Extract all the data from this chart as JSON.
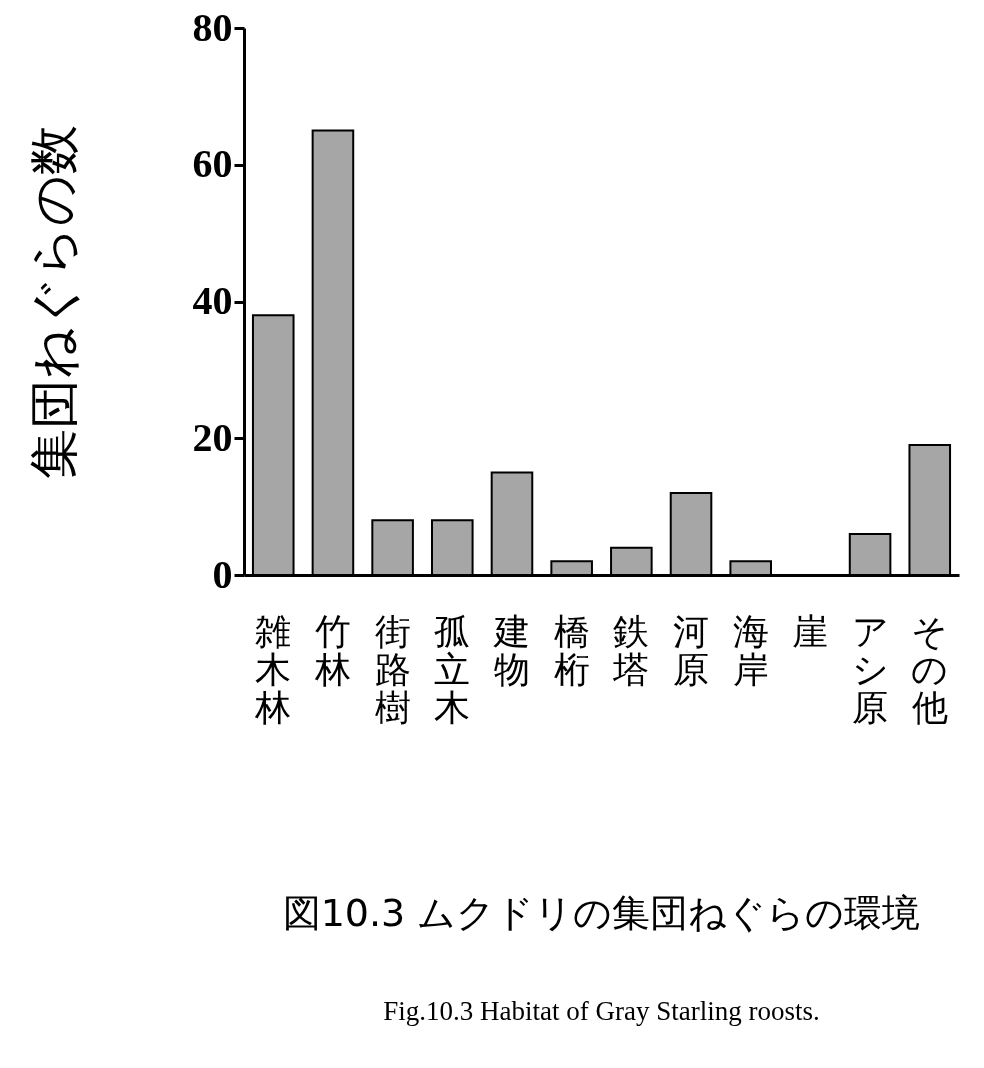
{
  "chart_data": {
    "type": "bar",
    "title": "図10.3 ムクドリの集団ねぐらの環境",
    "subtitle": "Fig.10.3  Habitat of Gray Starling roosts.",
    "ylabel": "集団ねぐらの数",
    "categories": [
      "雑木林",
      "竹林",
      "街路樹",
      "孤立木",
      "建物",
      "橋桁",
      "鉄塔",
      "河原",
      "海岸",
      "崖",
      "アシ原",
      "その他"
    ],
    "values": [
      38,
      65,
      8,
      8,
      15,
      2,
      4,
      12,
      2,
      0,
      6,
      19
    ],
    "color": "#a6a6a6",
    "ylim": [
      0,
      80
    ],
    "yticks": [
      0,
      20,
      40,
      60,
      80
    ],
    "grid": false
  }
}
